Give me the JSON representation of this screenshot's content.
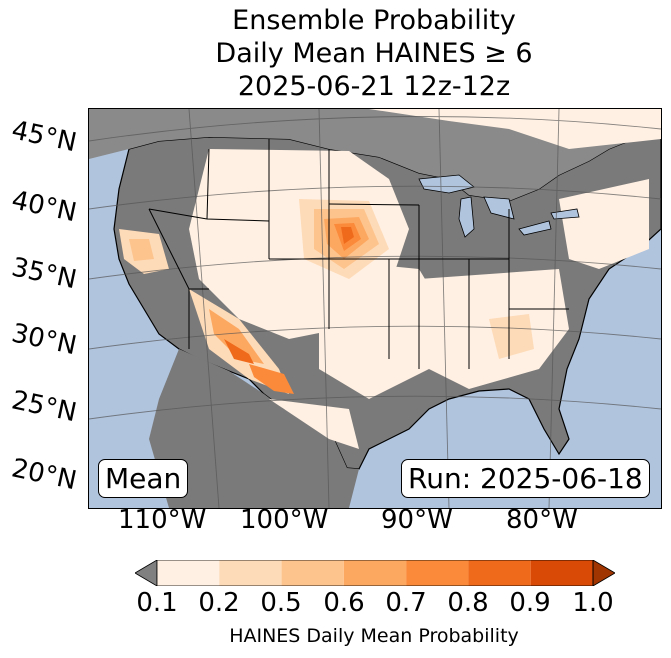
{
  "title": {
    "line1": "Ensemble Probability",
    "line2": "Daily Mean HAINES ≥ 6",
    "line3": "2025-06-21 12z-12z"
  },
  "map": {
    "lat_labels": [
      "45°N",
      "40°N",
      "35°N",
      "30°N",
      "25°N",
      "20°N"
    ],
    "lon_labels": [
      "110°W",
      "100°W",
      "90°W",
      "80°W"
    ],
    "ocean_color": "#b0c4de",
    "below_color": "#7a7a7a",
    "left_label": "Mean",
    "run_label": "Run: 2025-06-18"
  },
  "colorbar": {
    "ticks": [
      "0.1",
      "0.2",
      "0.5",
      "0.6",
      "0.7",
      "0.8",
      "0.9",
      "1.0"
    ],
    "colors": [
      "#fff0e3",
      "#fedbb8",
      "#fdc48e",
      "#fda861",
      "#fb8a3a",
      "#f06a1b",
      "#d94a06"
    ],
    "under_color": "#808080",
    "over_color": "#a03502",
    "label": "HAINES Daily Mean Probability"
  }
}
